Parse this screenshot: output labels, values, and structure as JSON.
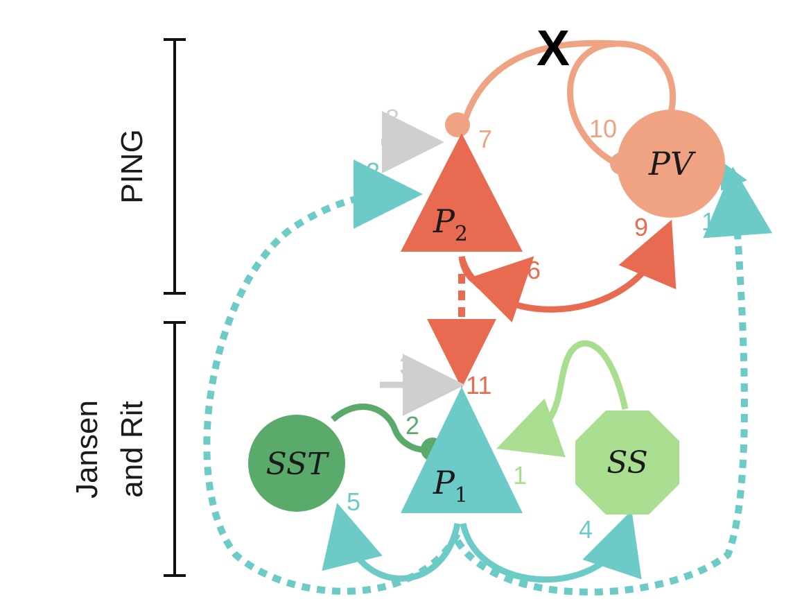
{
  "sections": {
    "ping": "PING",
    "jansen_line1": "Jansen",
    "jansen_line2": "and Rit"
  },
  "nodes": {
    "p2": {
      "label": "P",
      "sub": "2"
    },
    "pv": {
      "label": "PV"
    },
    "p1": {
      "label": "P",
      "sub": "1"
    },
    "sst": {
      "label": "SST"
    },
    "ss": {
      "label": "SS"
    }
  },
  "connections": {
    "c1": "1",
    "c2": "2",
    "c3": "3",
    "c4": "4",
    "c5": "5",
    "c6": "6",
    "c7": "7",
    "c8": "8",
    "c9": "9",
    "c10": "10",
    "c11": "11",
    "c12": "12",
    "c13": "13"
  },
  "marker": "X",
  "colors": {
    "p2": "#e86a50",
    "pv": "#f0a383",
    "p1": "#6ccac7",
    "sst": "#5aaa6c",
    "ss": "#a9de90",
    "ext": "#cfcfcf"
  }
}
